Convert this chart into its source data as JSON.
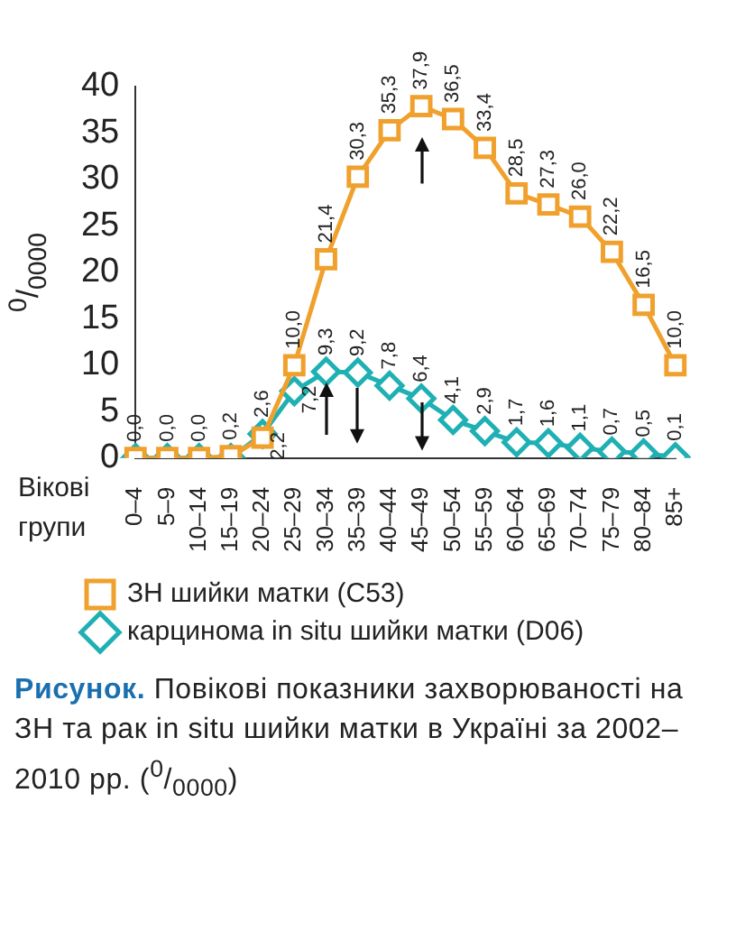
{
  "chart_data": {
    "type": "line",
    "title": "Рисунок.",
    "subtitle": "Повікові показники захворюваності на ЗН та рак in situ шийки матки в Україні за 2002–2010 рр. ($^{0}$/$_{0000}$)",
    "xlabel": "Вікові групи",
    "ylabel": "$^{0}$/$_{0000}$",
    "categories": [
      "0–4",
      "5–9",
      "10–14",
      "15–19",
      "20–24",
      "25–29",
      "30–34",
      "35–39",
      "40–44",
      "45–49",
      "50–54",
      "55–59",
      "60–64",
      "65–69",
      "70–74",
      "75–79",
      "80–84",
      "85+"
    ],
    "series": [
      {
        "name": "ЗН шийки матки (C53)",
        "color": "#f0a02c",
        "marker": "square",
        "values": [
          0.0,
          0.0,
          0.0,
          0.2,
          2.2,
          10.0,
          21.4,
          30.3,
          35.3,
          37.9,
          36.5,
          33.4,
          28.5,
          27.3,
          26.0,
          22.2,
          16.5,
          10.0
        ],
        "value_labels": [
          "0,0",
          "0,0",
          "0,0",
          "0,2",
          "2,2",
          "10,0",
          "21,4",
          "30,3",
          "35,3",
          "37,9",
          "36,5",
          "33,4",
          "28,5",
          "27,3",
          "26,0",
          "22,2",
          "16,5",
          "10,0"
        ]
      },
      {
        "name": "карцинома in situ шийки матки (D06)",
        "color": "#1fb0b4",
        "marker": "diamond",
        "values": [
          0,
          0,
          0,
          0,
          2.6,
          7.2,
          9.3,
          9.2,
          7.8,
          6.4,
          4.1,
          2.9,
          1.7,
          1.6,
          1.1,
          0.7,
          0.5,
          0.1
        ],
        "value_labels": [
          null,
          null,
          null,
          null,
          "2,6",
          "7,2",
          "9,3",
          "9,2",
          "7,8",
          "6,4",
          "4,1",
          "2,9",
          "1,7",
          "1,6",
          "1,1",
          "0,7",
          "0,5",
          "0,1"
        ]
      }
    ],
    "ylim": [
      0,
      40
    ],
    "yticks": [
      0,
      5,
      10,
      15,
      20,
      25,
      30,
      35,
      40
    ],
    "grid": false,
    "legend": "bottom"
  }
}
